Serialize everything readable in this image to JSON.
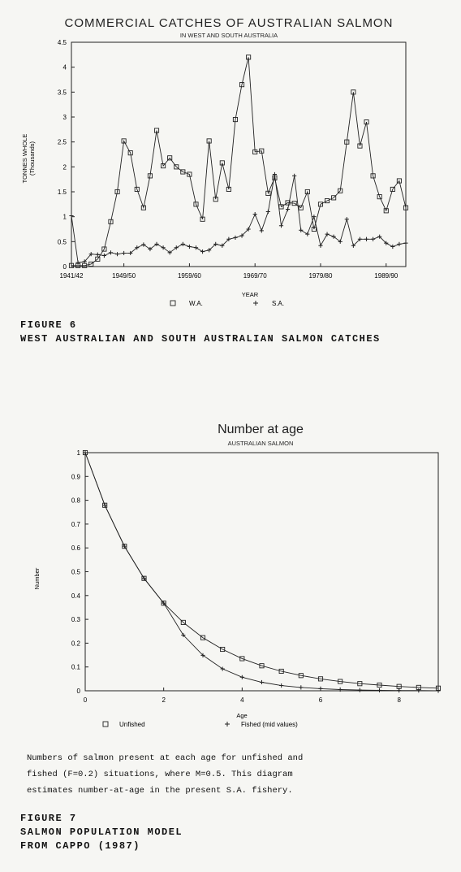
{
  "figure6": {
    "label": "FIGURE 6",
    "caption": "WEST AUSTRALIAN AND SOUTH AUSTRALIAN SALMON CATCHES"
  },
  "figure7": {
    "description_lines": [
      "Numbers of salmon present at each age for unfished and",
      "fished (F=0.2) situations, where M=0.5.  This diagram",
      "estimates number-at-age in the present S.A. fishery."
    ],
    "label": "FIGURE 7",
    "title": "SALMON POPULATION MODEL",
    "source": "FROM CAPPO (1987)"
  },
  "chart_data": [
    {
      "type": "line",
      "title": "COMMERCIAL CATCHES OF AUSTRALIAN SALMON",
      "subtitle": "IN WEST AND SOUTH AUSTRALIA",
      "xlabel": "YEAR",
      "ylabel": "TONNES WHOLE",
      "ylabel_sub": "(Thousands)",
      "xlim": [
        1941,
        1992
      ],
      "ylim": [
        0,
        4.5
      ],
      "yticks": [
        0,
        0.5,
        1,
        1.5,
        2,
        2.5,
        3,
        3.5,
        4,
        4.5
      ],
      "ytick_labels": [
        "0",
        "0.5",
        "1",
        "1.5",
        "2",
        "2.5",
        "3",
        "3.5",
        "4",
        "4.5"
      ],
      "xticks": [
        1941,
        1949,
        1959,
        1969,
        1979,
        1989
      ],
      "xtick_labels": [
        "1941/42",
        "1949/50",
        "1959/60",
        "1969/70",
        "1979/80",
        "1989/90"
      ],
      "legend_position": "bottom",
      "series": [
        {
          "name": "W.A.",
          "marker": "square",
          "x": [
            1941,
            1942,
            1943,
            1944,
            1945,
            1946,
            1947,
            1948,
            1949,
            1950,
            1951,
            1952,
            1953,
            1954,
            1955,
            1956,
            1957,
            1958,
            1959,
            1960,
            1961,
            1962,
            1963,
            1964,
            1965,
            1966,
            1967,
            1968,
            1969,
            1970,
            1971,
            1972,
            1973,
            1974,
            1975,
            1976,
            1977,
            1978,
            1979,
            1980,
            1981,
            1982,
            1983,
            1984,
            1985,
            1986,
            1987,
            1988,
            1989,
            1990,
            1991,
            1992
          ],
          "y": [
            0.02,
            0.02,
            0.02,
            0.05,
            0.15,
            0.35,
            0.9,
            1.5,
            2.52,
            2.28,
            1.55,
            1.18,
            1.82,
            2.73,
            2.02,
            2.18,
            2.0,
            1.9,
            1.85,
            1.25,
            0.95,
            2.52,
            1.35,
            2.08,
            1.55,
            2.95,
            3.65,
            4.2,
            2.3,
            2.32,
            1.47,
            1.78,
            1.2,
            1.28,
            1.27,
            1.18,
            1.5,
            0.75,
            1.25,
            1.32,
            1.38,
            1.52,
            2.5,
            3.5,
            2.42,
            2.9,
            1.82,
            1.4,
            1.12,
            1.55,
            1.72,
            1.18
          ]
        },
        {
          "name": "S.A.",
          "marker": "plus",
          "x": [
            1941,
            1942,
            1943,
            1944,
            1945,
            1946,
            1947,
            1948,
            1949,
            1950,
            1951,
            1952,
            1953,
            1954,
            1955,
            1956,
            1957,
            1958,
            1959,
            1960,
            1961,
            1962,
            1963,
            1964,
            1965,
            1966,
            1967,
            1968,
            1969,
            1970,
            1971,
            1972,
            1973,
            1974,
            1975,
            1976,
            1977,
            1978,
            1979,
            1980,
            1981,
            1982,
            1983,
            1984,
            1985,
            1986,
            1987,
            1988,
            1989,
            1990,
            1991,
            1992
          ],
          "y": [
            1.02,
            0.08,
            0.1,
            0.25,
            0.24,
            0.22,
            0.28,
            0.25,
            0.27,
            0.27,
            0.38,
            0.44,
            0.35,
            0.45,
            0.38,
            0.28,
            0.38,
            0.45,
            0.4,
            0.38,
            0.3,
            0.33,
            0.45,
            0.42,
            0.55,
            0.58,
            0.62,
            0.75,
            1.05,
            0.72,
            1.1,
            1.85,
            0.82,
            1.15,
            1.82,
            0.73,
            0.65,
            1.0,
            0.42,
            0.65,
            0.6,
            0.5,
            0.95,
            0.42,
            0.55,
            0.55,
            0.55,
            0.6,
            0.47,
            0.4,
            0.45,
            0.47
          ]
        }
      ]
    },
    {
      "type": "line",
      "title": "Number at age",
      "subtitle": "AUSTRALIAN SALMON",
      "xlabel": "Age",
      "ylabel": "Number",
      "xlim": [
        0,
        9
      ],
      "ylim": [
        0,
        1
      ],
      "xticks": [
        0,
        2,
        4,
        6,
        8
      ],
      "xtick_labels": [
        "0",
        "2",
        "4",
        "6",
        "8"
      ],
      "yticks": [
        0,
        0.1,
        0.2,
        0.3,
        0.4,
        0.5,
        0.6,
        0.7,
        0.8,
        0.9,
        1
      ],
      "ytick_labels": [
        "0",
        "0.1",
        "0.2",
        "0.3",
        "0.4",
        "0.5",
        "0.6",
        "0.7",
        "0.8",
        "0.9",
        "1"
      ],
      "legend_position": "bottom",
      "series": [
        {
          "name": "Unfished",
          "marker": "square",
          "x": [
            0,
            0.5,
            1,
            1.5,
            2,
            2.5,
            3,
            3.5,
            4,
            4.5,
            5,
            5.5,
            6,
            6.5,
            7,
            7.5,
            8,
            8.5,
            9
          ],
          "y": [
            1,
            0.779,
            0.607,
            0.472,
            0.368,
            0.287,
            0.223,
            0.174,
            0.135,
            0.105,
            0.082,
            0.064,
            0.05,
            0.039,
            0.03,
            0.024,
            0.018,
            0.014,
            0.011
          ]
        },
        {
          "name": "Fished (mid values)",
          "marker": "plus",
          "x": [
            0,
            0.5,
            1,
            1.5,
            2,
            2.5,
            3,
            3.5,
            4,
            4.5,
            5,
            5.5,
            6,
            6.5,
            7,
            7.5,
            8,
            8.5,
            9
          ],
          "y": [
            1,
            0.779,
            0.607,
            0.472,
            0.368,
            0.234,
            0.149,
            0.092,
            0.057,
            0.036,
            0.022,
            0.014,
            0.009,
            0.005,
            0.003,
            0.002,
            0.001,
            0.001,
            0.0
          ]
        }
      ]
    }
  ]
}
